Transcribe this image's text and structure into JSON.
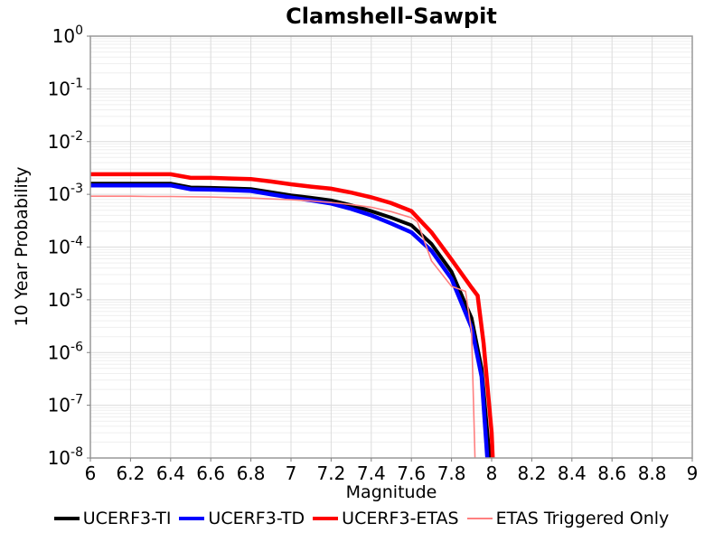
{
  "chart_data": {
    "type": "line",
    "title": "Clamshell-Sawpit",
    "xlabel": "Magnitude",
    "ylabel": "10 Year Probability",
    "xlim": [
      6,
      9
    ],
    "y_scale": "log",
    "ylim_exponents": [
      0,
      -8
    ],
    "grid": true,
    "legend_position": "bottom",
    "x_ticks": [
      {
        "v": 6,
        "label": "6"
      },
      {
        "v": 6.2,
        "label": "6.2"
      },
      {
        "v": 6.4,
        "label": "6.4"
      },
      {
        "v": 6.6,
        "label": "6.6"
      },
      {
        "v": 6.8,
        "label": "6.8"
      },
      {
        "v": 7,
        "label": "7"
      },
      {
        "v": 7.2,
        "label": "7.2"
      },
      {
        "v": 7.4,
        "label": "7.4"
      },
      {
        "v": 7.6,
        "label": "7.6"
      },
      {
        "v": 7.8,
        "label": "7.8"
      },
      {
        "v": 8,
        "label": "8"
      },
      {
        "v": 8.2,
        "label": "8.2"
      },
      {
        "v": 8.4,
        "label": "8.4"
      },
      {
        "v": 8.6,
        "label": "8.6"
      },
      {
        "v": 8.8,
        "label": "8.8"
      },
      {
        "v": 9,
        "label": "9"
      }
    ],
    "y_ticks": [
      {
        "base": "10",
        "exp": "0"
      },
      {
        "base": "10",
        "exp": "-1"
      },
      {
        "base": "10",
        "exp": "-2"
      },
      {
        "base": "10",
        "exp": "-3"
      },
      {
        "base": "10",
        "exp": "-4"
      },
      {
        "base": "10",
        "exp": "-5"
      },
      {
        "base": "10",
        "exp": "-6"
      },
      {
        "base": "10",
        "exp": "-7"
      },
      {
        "base": "10",
        "exp": "-8"
      }
    ],
    "colors": {
      "grid_major": "#dcdcdc",
      "grid_minor": "#efefef",
      "plot_border": "#999999",
      "tick": "#808080"
    },
    "series": [
      {
        "name": "UCERF3-TI",
        "color": "#000000",
        "width": 4,
        "points": [
          [
            6.0,
            0.0016
          ],
          [
            6.1,
            0.0016
          ],
          [
            6.2,
            0.0016
          ],
          [
            6.3,
            0.0016
          ],
          [
            6.4,
            0.0016
          ],
          [
            6.5,
            0.00135
          ],
          [
            6.6,
            0.00133
          ],
          [
            6.7,
            0.0013
          ],
          [
            6.8,
            0.00126
          ],
          [
            6.9,
            0.0011
          ],
          [
            7.0,
            0.00096
          ],
          [
            7.1,
            0.00086
          ],
          [
            7.2,
            0.00077
          ],
          [
            7.3,
            0.00062
          ],
          [
            7.4,
            0.00048
          ],
          [
            7.5,
            0.00036
          ],
          [
            7.6,
            0.00026
          ],
          [
            7.7,
            0.000115
          ],
          [
            7.8,
            3.4e-05
          ],
          [
            7.9,
            4.5e-06
          ],
          [
            7.95,
            5e-07
          ],
          [
            7.99,
            1e-08
          ],
          [
            7.995,
            4e-09
          ]
        ]
      },
      {
        "name": "UCERF3-TD",
        "color": "#0000ff",
        "width": 4.5,
        "points": [
          [
            6.0,
            0.00148
          ],
          [
            6.1,
            0.00148
          ],
          [
            6.2,
            0.00148
          ],
          [
            6.3,
            0.00148
          ],
          [
            6.4,
            0.00148
          ],
          [
            6.5,
            0.00125
          ],
          [
            6.6,
            0.00123
          ],
          [
            6.7,
            0.0012
          ],
          [
            6.8,
            0.00116
          ],
          [
            6.9,
            0.001
          ],
          [
            7.0,
            0.00087
          ],
          [
            7.1,
            0.00077
          ],
          [
            7.2,
            0.00067
          ],
          [
            7.3,
            0.00053
          ],
          [
            7.4,
            0.0004
          ],
          [
            7.5,
            0.00028
          ],
          [
            7.6,
            0.00019
          ],
          [
            7.7,
            8.5e-05
          ],
          [
            7.8,
            2.5e-05
          ],
          [
            7.9,
            3e-06
          ],
          [
            7.95,
            3.5e-07
          ],
          [
            7.98,
            8e-09
          ],
          [
            7.985,
            4e-09
          ]
        ]
      },
      {
        "name": "UCERF3-ETAS",
        "color": "#ff0000",
        "width": 4.5,
        "points": [
          [
            6.0,
            0.0024
          ],
          [
            6.1,
            0.0024
          ],
          [
            6.2,
            0.0024
          ],
          [
            6.3,
            0.0024
          ],
          [
            6.4,
            0.0024
          ],
          [
            6.5,
            0.00205
          ],
          [
            6.6,
            0.00205
          ],
          [
            6.7,
            0.002
          ],
          [
            6.8,
            0.00195
          ],
          [
            6.9,
            0.00175
          ],
          [
            7.0,
            0.00155
          ],
          [
            7.1,
            0.0014
          ],
          [
            7.2,
            0.00128
          ],
          [
            7.3,
            0.00108
          ],
          [
            7.4,
            0.00088
          ],
          [
            7.5,
            0.00068
          ],
          [
            7.6,
            0.00048
          ],
          [
            7.7,
            0.00019
          ],
          [
            7.8,
            5.8e-05
          ],
          [
            7.9,
            1.7e-05
          ],
          [
            7.93,
            1.2e-05
          ],
          [
            7.96,
            1.5e-06
          ],
          [
            8.0,
            3e-08
          ],
          [
            8.01,
            4e-09
          ]
        ]
      },
      {
        "name": "ETAS Triggered Only",
        "color": "#ff8080",
        "width": 1.6,
        "points": [
          [
            6.0,
            0.00092
          ],
          [
            6.1,
            0.00092
          ],
          [
            6.2,
            0.00092
          ],
          [
            6.3,
            0.00091
          ],
          [
            6.4,
            0.00091
          ],
          [
            6.5,
            0.0009
          ],
          [
            6.6,
            0.00089
          ],
          [
            6.7,
            0.00087
          ],
          [
            6.8,
            0.00085
          ],
          [
            6.9,
            0.00082
          ],
          [
            7.0,
            0.00079
          ],
          [
            7.1,
            0.00075
          ],
          [
            7.2,
            0.0007
          ],
          [
            7.3,
            0.00064
          ],
          [
            7.4,
            0.00057
          ],
          [
            7.5,
            0.00047
          ],
          [
            7.6,
            0.00036
          ],
          [
            7.63,
            0.0003
          ],
          [
            7.7,
            5.5e-05
          ],
          [
            7.8,
            1.8e-05
          ],
          [
            7.87,
            1.45e-05
          ],
          [
            7.9,
            2.5e-06
          ],
          [
            7.92,
            4e-09
          ]
        ]
      }
    ]
  }
}
